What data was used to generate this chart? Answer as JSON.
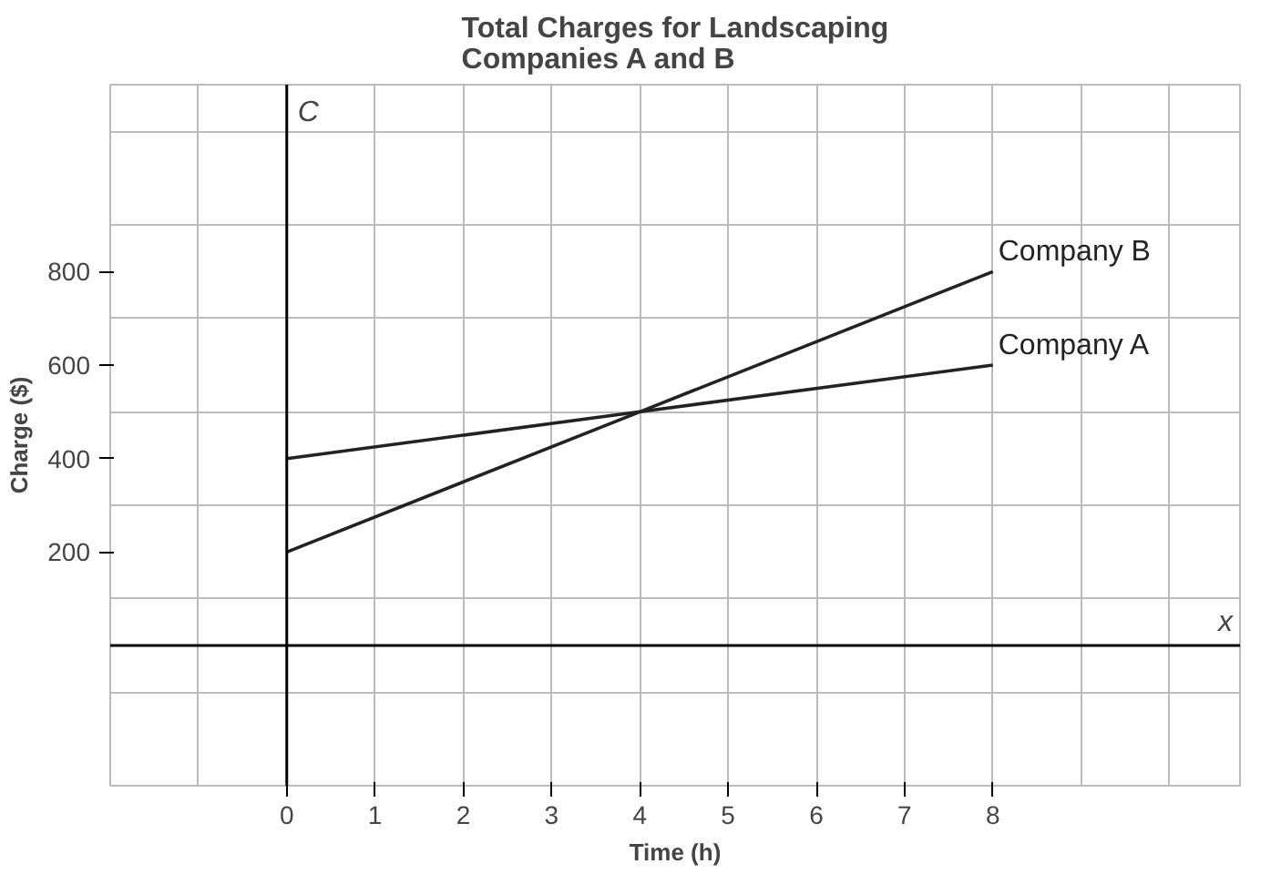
{
  "chart_data": {
    "type": "line",
    "title": "Total Charges for Landscaping\nCompanies A and B",
    "xlabel": "Time (h)",
    "ylabel": "Charge ($)",
    "x": [
      0,
      4,
      8
    ],
    "series": [
      {
        "name": "Company A",
        "color": "#222222",
        "values": [
          400,
          500,
          600
        ]
      },
      {
        "name": "Company B",
        "color": "#222222",
        "values": [
          200,
          500,
          800
        ]
      }
    ],
    "xlim": [
      -2,
      10.8
    ],
    "ylim": [
      -300,
      1200
    ],
    "xticks": [
      0,
      1,
      2,
      3,
      4,
      5,
      6,
      7,
      8
    ],
    "yticks": [
      200,
      400,
      600,
      800
    ],
    "grid": true,
    "annotations": [
      "x",
      "C"
    ]
  }
}
